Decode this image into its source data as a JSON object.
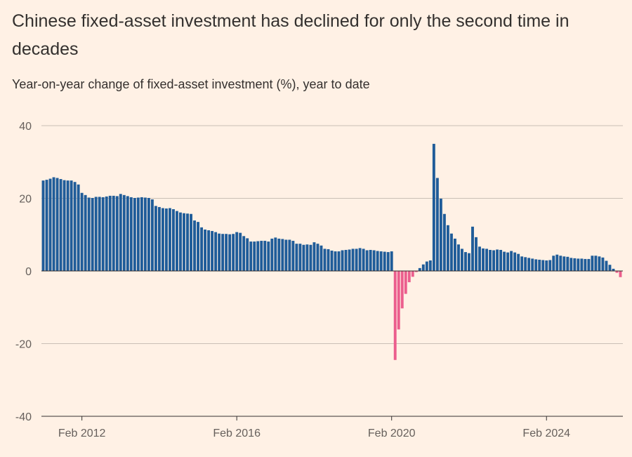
{
  "title": "Chinese fixed-asset investment has declined for only the second time in decades",
  "subtitle": "Year-on-year change of fixed-asset investment (%), year to date",
  "colors": {
    "positive": "#1f5c99",
    "negative": "#eb5e8d",
    "grid": "#c9bfb5",
    "zero": "#33302e"
  },
  "chart_data": {
    "type": "bar",
    "title": "Chinese fixed-asset investment has declined for only the second time in decades",
    "ylabel": "Year-on-year change of fixed-asset investment (%), year to date",
    "xlabel": "",
    "ylim": [
      -40,
      40
    ],
    "yticks": [
      40,
      20,
      0,
      -20,
      -40
    ],
    "xticks": [
      {
        "label": "Feb 2012",
        "index": 11
      },
      {
        "label": "Feb 2016",
        "index": 55
      },
      {
        "label": "Feb 2020",
        "index": 99
      },
      {
        "label": "Feb 2024",
        "index": 143
      }
    ],
    "grid": true,
    "series": [
      {
        "values": [
          24.9,
          25.1,
          25.4,
          25.8,
          25.6,
          25.3,
          25.0,
          24.9,
          24.9,
          24.5,
          23.8,
          21.5,
          20.9,
          20.2,
          20.1,
          20.4,
          20.4,
          20.3,
          20.5,
          20.7,
          20.7,
          20.6,
          21.2,
          20.9,
          20.6,
          20.3,
          20.1,
          20.2,
          20.3,
          20.2,
          20.1,
          19.7,
          17.9,
          17.6,
          17.3,
          17.2,
          17.3,
          17.0,
          16.5,
          16.1,
          15.9,
          15.8,
          15.7,
          13.9,
          13.5,
          12.0,
          11.4,
          11.2,
          11.0,
          10.7,
          10.3,
          10.2,
          10.2,
          10.1,
          10.2,
          10.7,
          10.5,
          9.6,
          9.0,
          8.1,
          8.1,
          8.2,
          8.3,
          8.3,
          8.1,
          8.9,
          9.2,
          8.9,
          8.8,
          8.6,
          8.6,
          8.3,
          7.5,
          7.5,
          7.2,
          7.3,
          7.2,
          7.9,
          7.5,
          7.0,
          6.1,
          6.0,
          5.6,
          5.4,
          5.4,
          5.7,
          5.8,
          5.9,
          6.1,
          6.1,
          6.3,
          6.1,
          5.7,
          5.8,
          5.7,
          5.5,
          5.4,
          5.3,
          5.2,
          5.4,
          -24.5,
          -16.1,
          -10.3,
          -6.3,
          -3.1,
          -1.6,
          -0.3,
          0.8,
          1.8,
          2.6,
          2.9,
          35.0,
          25.6,
          19.9,
          15.7,
          12.6,
          10.3,
          8.9,
          7.3,
          6.1,
          5.2,
          4.9,
          12.2,
          9.3,
          6.7,
          6.2,
          6.1,
          5.8,
          5.7,
          5.9,
          5.8,
          5.3,
          5.1,
          5.5,
          5.1,
          4.7,
          4.0,
          3.8,
          3.6,
          3.4,
          3.2,
          3.1,
          3.0,
          2.9,
          3.0,
          4.2,
          4.5,
          4.2,
          4.0,
          3.9,
          3.6,
          3.5,
          3.4,
          3.4,
          3.3,
          3.3,
          4.2,
          4.2,
          4.0,
          3.7,
          2.8,
          1.7,
          0.6,
          -0.5,
          -1.7
        ]
      }
    ]
  }
}
